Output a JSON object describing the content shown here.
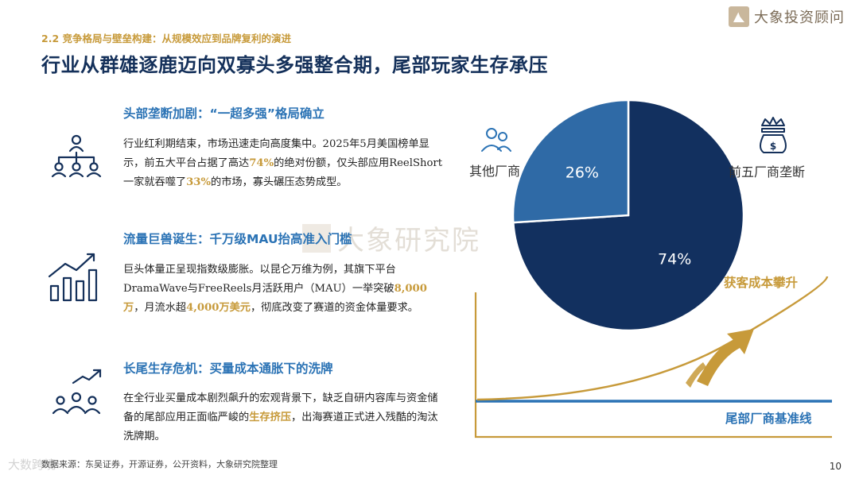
{
  "header": {
    "section_label": "2.2  竞争格局与壁垒构建：从规模效应到品牌复利的演进",
    "title": "行业从群雄逐鹿迈向双寡头多强整合期，尾部玩家生存承压",
    "brand": "大象投资顾问",
    "brand_icon": "elephant-logo-icon"
  },
  "blocks": [
    {
      "heading": "头部垄断加剧：“一超多强”格局确立",
      "icon": "org-hierarchy-icon",
      "text_parts": [
        {
          "t": "行业红利期结束，市场迅速走向高度集中。2025年5月美国榜单显示，前五大平台占据了高达",
          "hl": false
        },
        {
          "t": "74%",
          "hl": true
        },
        {
          "t": "的绝对份额，仅头部应用ReelShort一家就吞噬了",
          "hl": false
        },
        {
          "t": "33%",
          "hl": true
        },
        {
          "t": "的市场，寡头碾压态势成型。",
          "hl": false
        }
      ]
    },
    {
      "heading": "流量巨兽诞生：千万级MAU抬高准入门槛",
      "icon": "growth-bar-chart-icon",
      "text_parts": [
        {
          "t": "巨头体量正呈现指数级膨胀。以昆仑万维为例，其旗下平台DramaWave与FreeReels月活跃用户（MAU）一举突破",
          "hl": false
        },
        {
          "t": "8,000万",
          "hl": true
        },
        {
          "t": "，月流水超",
          "hl": false
        },
        {
          "t": "4,000万美元",
          "hl": true
        },
        {
          "t": "，彻底改变了赛道的资金体量要求。",
          "hl": false
        }
      ]
    },
    {
      "heading": "长尾生存危机：买量成本通胀下的洗牌",
      "icon": "team-trend-icon",
      "text_parts": [
        {
          "t": "在全行业买量成本剧烈飙升的宏观背景下，缺乏自研内容库与资金储备的尾部应用正面临严峻的",
          "hl": false
        },
        {
          "t": "生存挤压",
          "hl": true
        },
        {
          "t": "，出海赛道正式进入残酷的淘汰洗牌期。",
          "hl": false
        }
      ]
    }
  ],
  "watermark": "大象研究院",
  "chart_data": {
    "type": "pie",
    "slices": [
      {
        "label": "前五厂商垄断",
        "value": 74,
        "display": "74%",
        "color": "#12305f",
        "icon": "money-bag-crown-icon"
      },
      {
        "label": "其他厂商",
        "value": 26,
        "display": "26%",
        "color": "#2f6aa6",
        "icon": "people-icon"
      }
    ]
  },
  "illustration": {
    "rising_label": "获客成本攀升",
    "baseline_label": "尾部厂商基准线",
    "curve_color": "#c79a3a",
    "baseline_color": "#2b73b5"
  },
  "footer": {
    "source": "数据来源：东吴证券，开源证券，公开资料，大象研究院整理",
    "page": "10",
    "corner_mark": "大数跨境"
  },
  "colors": {
    "title": "#14305a",
    "heading": "#2b73b5",
    "accent_gold": "#c79a3a"
  }
}
